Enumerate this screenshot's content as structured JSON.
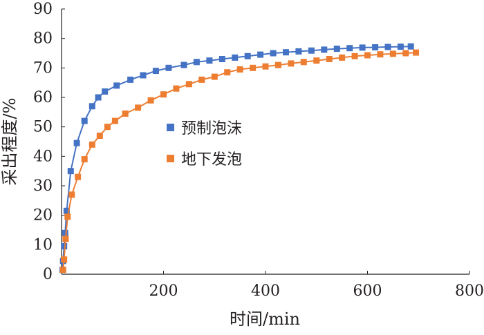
{
  "chart_data": {
    "type": "line",
    "title": "",
    "xlabel": "时间/min",
    "ylabel": "采出程度/%",
    "xlim": [
      0,
      800
    ],
    "ylim": [
      0,
      90
    ],
    "xticks": [
      200,
      400,
      600,
      800
    ],
    "yticks": [
      0,
      10,
      20,
      30,
      40,
      50,
      60,
      70,
      80,
      90
    ],
    "grid": false,
    "legend_position": "center",
    "series": [
      {
        "name": "预制泡沫",
        "color": "#4472c4",
        "marker": "square",
        "x": [
          2,
          3,
          5,
          7,
          10,
          18,
          30,
          45,
          60,
          72,
          85,
          108,
          135,
          160,
          185,
          210,
          240,
          265,
          290,
          315,
          340,
          365,
          390,
          415,
          440,
          465,
          490,
          515,
          540,
          565,
          590,
          615,
          640,
          665,
          685
        ],
        "y": [
          1.5,
          4.5,
          9.5,
          14,
          21.5,
          35,
          44.5,
          52,
          57,
          60,
          62,
          64,
          66,
          67.5,
          69,
          70,
          71,
          72,
          72.5,
          73,
          73.5,
          74,
          74.5,
          75,
          75.3,
          75.6,
          75.9,
          76.2,
          76.5,
          76.7,
          76.9,
          77,
          77.1,
          77.2,
          77.3
        ]
      },
      {
        "name": "地下发泡",
        "color": "#ed7d31",
        "marker": "square",
        "x": [
          3,
          5,
          8,
          12,
          20,
          32,
          45,
          60,
          75,
          90,
          105,
          125,
          150,
          175,
          200,
          225,
          250,
          275,
          300,
          325,
          350,
          375,
          400,
          425,
          450,
          475,
          500,
          525,
          550,
          575,
          600,
          625,
          650,
          675,
          695
        ],
        "y": [
          1.5,
          5,
          12,
          19.5,
          27,
          33,
          39,
          44,
          47,
          50,
          52,
          54.5,
          56.5,
          59,
          61,
          63,
          64.5,
          66,
          67,
          68.5,
          69.5,
          70,
          70.5,
          71,
          71.5,
          72,
          72.5,
          73,
          73.5,
          74,
          74.3,
          74.6,
          74.8,
          75,
          75.2
        ]
      }
    ]
  }
}
